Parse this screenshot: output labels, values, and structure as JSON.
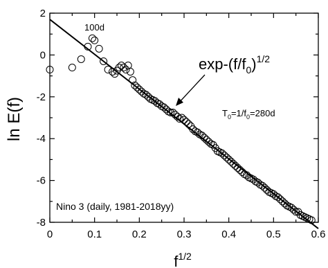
{
  "chart_data": {
    "type": "scatter",
    "xlabel": "f",
    "xlabel_exponent": "1/2",
    "ylabel": "ln E(f)",
    "xlim": [
      0,
      0.6
    ],
    "ylim": [
      -8,
      2
    ],
    "x_ticks": [
      "0",
      "0.1",
      "0.2",
      "0.3",
      "0.4",
      "0.5",
      "0.6"
    ],
    "y_ticks": [
      "2",
      "0",
      "-2",
      "-4",
      "-6",
      "-8"
    ],
    "grid": false,
    "series": [
      {
        "marker": "open-circle",
        "color": "#000000",
        "x": [
          0.0,
          0.05,
          0.07,
          0.085,
          0.095,
          0.1,
          0.11,
          0.12,
          0.13,
          0.14,
          0.145,
          0.15,
          0.155,
          0.16,
          0.165,
          0.17,
          0.175,
          0.18,
          0.185,
          0.19,
          0.195,
          0.2,
          0.205,
          0.21,
          0.215,
          0.22,
          0.225,
          0.23,
          0.235,
          0.24,
          0.245,
          0.25,
          0.255,
          0.26,
          0.265,
          0.27,
          0.275,
          0.28,
          0.285,
          0.29,
          0.295,
          0.3,
          0.305,
          0.31,
          0.315,
          0.32,
          0.325,
          0.33,
          0.335,
          0.34,
          0.345,
          0.35,
          0.355,
          0.36,
          0.365,
          0.37,
          0.375,
          0.38,
          0.385,
          0.39,
          0.395,
          0.4,
          0.405,
          0.41,
          0.415,
          0.42,
          0.425,
          0.43,
          0.435,
          0.44,
          0.445,
          0.45,
          0.455,
          0.46,
          0.465,
          0.47,
          0.475,
          0.48,
          0.485,
          0.49,
          0.495,
          0.5,
          0.505,
          0.51,
          0.515,
          0.52,
          0.525,
          0.53,
          0.535,
          0.54,
          0.545,
          0.55,
          0.555,
          0.56,
          0.565,
          0.57,
          0.575,
          0.58,
          0.585
        ],
        "y": [
          -0.7,
          -0.6,
          -0.2,
          0.4,
          0.8,
          0.7,
          0.3,
          -0.3,
          -0.7,
          -0.8,
          -0.9,
          -0.75,
          -0.6,
          -0.5,
          -0.6,
          -0.7,
          -0.5,
          -0.8,
          -1.2,
          -1.45,
          -1.55,
          -1.65,
          -1.75,
          -1.85,
          -1.9,
          -2.0,
          -2.1,
          -2.15,
          -2.2,
          -2.3,
          -2.35,
          -2.45,
          -2.5,
          -2.6,
          -2.7,
          -2.75,
          -2.75,
          -2.85,
          -2.95,
          -3.05,
          -3.0,
          -3.1,
          -3.2,
          -3.3,
          -3.4,
          -3.55,
          -3.65,
          -3.7,
          -3.8,
          -3.85,
          -3.95,
          -4.05,
          -4.15,
          -4.25,
          -4.3,
          -4.45,
          -4.6,
          -4.65,
          -4.7,
          -4.8,
          -4.9,
          -5.0,
          -5.1,
          -5.2,
          -5.3,
          -5.4,
          -5.5,
          -5.6,
          -5.7,
          -5.75,
          -5.85,
          -5.9,
          -5.95,
          -6.05,
          -6.1,
          -6.2,
          -6.25,
          -6.35,
          -6.45,
          -6.55,
          -6.6,
          -6.65,
          -6.75,
          -6.8,
          -6.9,
          -7.0,
          -7.1,
          -7.2,
          -7.25,
          -7.3,
          -7.4,
          -7.5,
          -7.5,
          -7.65,
          -7.7,
          -7.75,
          -7.8,
          -7.85,
          -7.9
        ]
      }
    ],
    "fit_line": {
      "label": "exp-(f/f",
      "label_subscript": "0",
      "label_superscript": "1/2",
      "x": [
        0,
        0.6
      ],
      "y": [
        1.7,
        -8.3
      ]
    },
    "annotations": {
      "peak_label": "100d",
      "period_prefix": "T",
      "period_sub1": "0",
      "period_mid": "=1/f",
      "period_sub2": "0",
      "period_value": "=280d",
      "dataset": "Nino 3  (daily, 1981-2018yy)"
    }
  }
}
